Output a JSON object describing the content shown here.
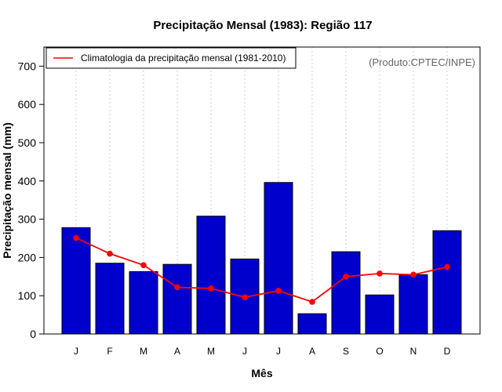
{
  "chart_data": {
    "type": "bar",
    "title": "Precipitação Mensal (1983): Região 117",
    "xlabel": "Mês",
    "ylabel": "Precipitação mensal (mm)",
    "categories": [
      "J",
      "F",
      "M",
      "A",
      "M",
      "J",
      "J",
      "A",
      "S",
      "O",
      "N",
      "D"
    ],
    "ylim": [
      0,
      750
    ],
    "yticks": [
      "0",
      "100",
      "200",
      "300",
      "400",
      "500",
      "600",
      "700"
    ],
    "grid": "vertical dotted",
    "series": [
      {
        "name": "Precipitação mensal 1983",
        "type": "bar",
        "color": "#0000CD",
        "values": [
          278,
          185,
          163,
          182,
          308,
          196,
          396,
          53,
          215,
          102,
          155,
          270
        ]
      },
      {
        "name": "Climatologia da precipitação mensal (1981-2010)",
        "type": "line",
        "color": "#FF0000",
        "values": [
          251,
          210,
          180,
          122,
          119,
          96,
          113,
          84,
          150,
          158,
          155,
          175
        ]
      }
    ],
    "legend": {
      "position": "top-left",
      "entries": [
        "Climatologia da precipitação mensal (1981-2010)"
      ]
    },
    "annotation": "(Produto:CPTEC/INPE)"
  }
}
